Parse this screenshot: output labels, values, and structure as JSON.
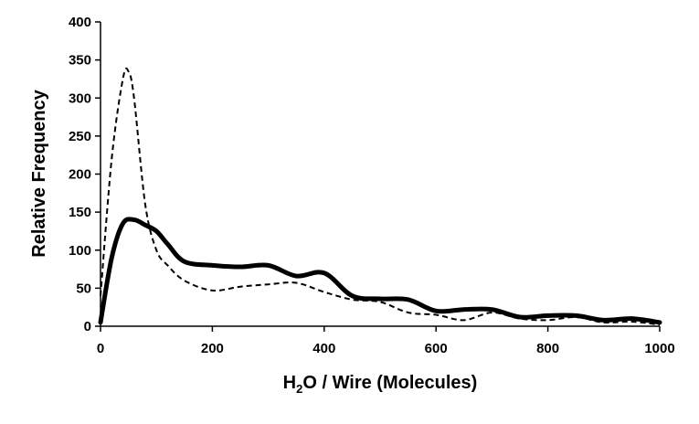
{
  "chart_data": {
    "type": "line",
    "title": "",
    "xlabel_parts": [
      "H",
      "2",
      "O / Wire (Molecules)"
    ],
    "ylabel": "Relative Frequency",
    "xlim": [
      0,
      1000
    ],
    "ylim": [
      0,
      400
    ],
    "x_ticks": [
      "0",
      "200",
      "400",
      "600",
      "800",
      "1000"
    ],
    "y_ticks": [
      "0",
      "50",
      "100",
      "150",
      "200",
      "250",
      "300",
      "350",
      "400"
    ],
    "grid": false,
    "legend": "none",
    "series": [
      {
        "style": "solid",
        "color": "#000000",
        "x": [
          0,
          20,
          40,
          60,
          80,
          100,
          120,
          150,
          200,
          250,
          300,
          350,
          400,
          450,
          500,
          550,
          600,
          650,
          700,
          750,
          800,
          850,
          900,
          950,
          1000
        ],
        "y": [
          5,
          90,
          135,
          140,
          133,
          125,
          108,
          85,
          80,
          78,
          80,
          66,
          70,
          40,
          36,
          35,
          20,
          22,
          22,
          12,
          14,
          14,
          8,
          10,
          5
        ]
      },
      {
        "style": "dashed",
        "color": "#000000",
        "x": [
          0,
          20,
          40,
          50,
          60,
          80,
          100,
          120,
          150,
          200,
          250,
          300,
          350,
          400,
          450,
          500,
          550,
          600,
          650,
          700,
          750,
          800,
          850,
          900,
          950,
          1000
        ],
        "y": [
          40,
          220,
          325,
          335,
          300,
          160,
          100,
          80,
          60,
          47,
          52,
          55,
          57,
          45,
          35,
          32,
          18,
          15,
          8,
          18,
          10,
          8,
          12,
          5,
          6,
          2
        ]
      }
    ]
  }
}
